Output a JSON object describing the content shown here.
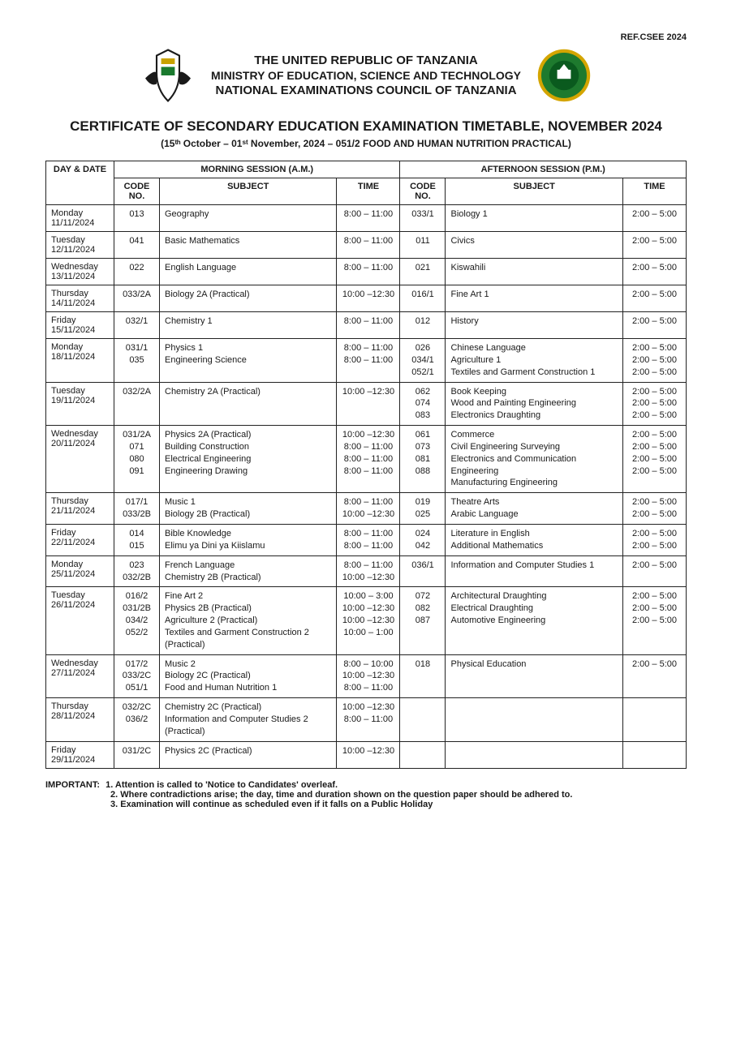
{
  "page": {
    "ref": "REF.CSEE 2024",
    "header": {
      "line1": "THE UNITED REPUBLIC OF TANZANIA",
      "line2": "MINISTRY OF EDUCATION, SCIENCE AND TECHNOLOGY",
      "line3": "NATIONAL EXAMINATIONS COUNCIL OF TANZANIA"
    },
    "crest_colors": {
      "shield": "#ffffff",
      "outline": "#1a1a1a",
      "accent": "#c8a200"
    },
    "seal_colors": {
      "ring": "#1e7a2e",
      "center": "#0a5a1e",
      "gold": "#d4a500"
    },
    "title": "CERTIFICATE OF SECONDARY EDUCATION EXAMINATION TIMETABLE, NOVEMBER 2024",
    "subtitle": "(15ᵗʰ October – 01ˢᵗ November, 2024 – 051/2 FOOD AND HUMAN NUTRITION PRACTICAL)",
    "columns": {
      "daydate": "DAY & DATE",
      "am_session": "MORNING SESSION  (A.M.)",
      "pm_session": "AFTERNOON SESSION  (P.M.)",
      "code": "CODE NO.",
      "subject": "SUBJECT",
      "time": "TIME"
    },
    "important": {
      "lead": "IMPORTANT:",
      "items": [
        "1. Attention is called to 'Notice to Candidates' overleaf.",
        "2. Where contradictions arise; the day, time and duration shown on the question paper should be adhered to.",
        "3. Examination will continue as scheduled even if it falls on a Public Holiday"
      ]
    }
  },
  "rows": [
    {
      "dow": "Monday",
      "date": "11/11/2024",
      "am": {
        "codes": [
          "013"
        ],
        "subjects": [
          "Geography"
        ],
        "times": [
          "8:00 – 11:00"
        ]
      },
      "pm": {
        "codes": [
          "033/1"
        ],
        "subjects": [
          "Biology 1"
        ],
        "times": [
          "2:00 – 5:00"
        ]
      }
    },
    {
      "dow": "Tuesday",
      "date": "12/11/2024",
      "am": {
        "codes": [
          "041"
        ],
        "subjects": [
          "Basic Mathematics"
        ],
        "times": [
          "8:00 – 11:00"
        ]
      },
      "pm": {
        "codes": [
          "011"
        ],
        "subjects": [
          "Civics"
        ],
        "times": [
          "2:00 – 5:00"
        ]
      }
    },
    {
      "dow": "Wednesday",
      "date": "13/11/2024",
      "am": {
        "codes": [
          "022"
        ],
        "subjects": [
          "English Language"
        ],
        "times": [
          "8:00 – 11:00"
        ]
      },
      "pm": {
        "codes": [
          "021"
        ],
        "subjects": [
          "Kiswahili"
        ],
        "times": [
          "2:00 – 5:00"
        ]
      }
    },
    {
      "dow": "Thursday",
      "date": "14/11/2024",
      "am": {
        "codes": [
          "033/2A"
        ],
        "subjects": [
          "Biology 2A (Practical)"
        ],
        "times": [
          "10:00 –12:30"
        ]
      },
      "pm": {
        "codes": [
          "016/1"
        ],
        "subjects": [
          "Fine Art 1"
        ],
        "times": [
          "2:00 – 5:00"
        ]
      }
    },
    {
      "dow": "Friday",
      "date": "15/11/2024",
      "am": {
        "codes": [
          "032/1"
        ],
        "subjects": [
          "Chemistry 1"
        ],
        "times": [
          "8:00 – 11:00"
        ]
      },
      "pm": {
        "codes": [
          "012"
        ],
        "subjects": [
          "History"
        ],
        "times": [
          "2:00 – 5:00"
        ]
      }
    },
    {
      "dow": "Monday",
      "date": "18/11/2024",
      "am": {
        "codes": [
          "031/1",
          "035"
        ],
        "subjects": [
          "Physics 1",
          "Engineering Science"
        ],
        "times": [
          "8:00 – 11:00",
          "8:00 – 11:00"
        ]
      },
      "pm": {
        "codes": [
          "026",
          "034/1",
          "052/1"
        ],
        "subjects": [
          "Chinese Language",
          "Agriculture 1",
          "Textiles and Garment Construction 1"
        ],
        "times": [
          "2:00 – 5:00",
          "2:00 – 5:00",
          "2:00 – 5:00"
        ]
      }
    },
    {
      "dow": "Tuesday",
      "date": "19/11/2024",
      "am": {
        "codes": [
          "032/2A"
        ],
        "subjects": [
          "Chemistry 2A (Practical)"
        ],
        "times": [
          "10:00 –12:30"
        ]
      },
      "pm": {
        "codes": [
          "062",
          "074",
          "083"
        ],
        "subjects": [
          "Book Keeping",
          "Wood and Painting Engineering",
          "Electronics Draughting"
        ],
        "times": [
          "2:00 – 5:00",
          "2:00 – 5:00",
          "2:00 – 5:00"
        ]
      }
    },
    {
      "dow": "Wednesday",
      "date": "20/11/2024",
      "am": {
        "codes": [
          "031/2A",
          "071",
          "080",
          "091"
        ],
        "subjects": [
          "Physics 2A (Practical)",
          "Building Construction",
          "Electrical Engineering",
          "Engineering Drawing"
        ],
        "times": [
          "10:00 –12:30",
          "8:00 – 11:00",
          "8:00 – 11:00",
          "8:00 – 11:00"
        ]
      },
      "pm": {
        "codes": [
          "061",
          "073",
          "081",
          "088"
        ],
        "subjects": [
          "Commerce",
          "Civil Engineering Surveying",
          "Electronics and Communication Engineering",
          "Manufacturing Engineering"
        ],
        "times": [
          "2:00 – 5:00",
          "2:00 – 5:00",
          "2:00 – 5:00",
          "2:00 – 5:00"
        ]
      }
    },
    {
      "dow": "Thursday",
      "date": "21/11/2024",
      "am": {
        "codes": [
          "017/1",
          "033/2B"
        ],
        "subjects": [
          "Music 1",
          "Biology 2B (Practical)"
        ],
        "times": [
          "8:00 – 11:00",
          "10:00 –12:30"
        ]
      },
      "pm": {
        "codes": [
          "019",
          "025"
        ],
        "subjects": [
          "Theatre Arts",
          "Arabic Language"
        ],
        "times": [
          "2:00 – 5:00",
          "2:00 – 5:00"
        ]
      }
    },
    {
      "dow": "Friday",
      "date": "22/11/2024",
      "am": {
        "codes": [
          "014",
          "015"
        ],
        "subjects": [
          "Bible Knowledge",
          "Elimu ya Dini ya Kiislamu"
        ],
        "times": [
          "8:00 – 11:00",
          "8:00 – 11:00"
        ]
      },
      "pm": {
        "codes": [
          "024",
          "042"
        ],
        "subjects": [
          "Literature in English",
          "Additional Mathematics"
        ],
        "times": [
          "2:00 – 5:00",
          "2:00 – 5:00"
        ]
      }
    },
    {
      "dow": "Monday",
      "date": "25/11/2024",
      "am": {
        "codes": [
          "023",
          "032/2B"
        ],
        "subjects": [
          "French Language",
          "Chemistry 2B (Practical)"
        ],
        "times": [
          "8:00 – 11:00",
          "10:00 –12:30"
        ]
      },
      "pm": {
        "codes": [
          "036/1"
        ],
        "subjects": [
          "Information and Computer Studies 1"
        ],
        "times": [
          "2:00 – 5:00"
        ]
      }
    },
    {
      "dow": "Tuesday",
      "date": "26/11/2024",
      "am": {
        "codes": [
          "016/2",
          "031/2B",
          "034/2",
          "052/2"
        ],
        "subjects": [
          "Fine Art 2",
          "Physics 2B (Practical)",
          "Agriculture 2 (Practical)",
          "Textiles and Garment Construction 2 (Practical)"
        ],
        "times": [
          "10:00 – 3:00",
          "10:00 –12:30",
          "10:00 –12:30",
          "10:00 – 1:00"
        ]
      },
      "pm": {
        "codes": [
          "072",
          "082",
          "087"
        ],
        "subjects": [
          "Architectural Draughting",
          "Electrical Draughting",
          "Automotive Engineering"
        ],
        "times": [
          "2:00 – 5:00",
          "2:00 – 5:00",
          "2:00 – 5:00"
        ]
      }
    },
    {
      "dow": "Wednesday",
      "date": "27/11/2024",
      "am": {
        "codes": [
          "017/2",
          "033/2C",
          "051/1"
        ],
        "subjects": [
          "Music 2",
          "Biology 2C (Practical)",
          "Food and Human Nutrition 1"
        ],
        "times": [
          "8:00 – 10:00",
          "10:00 –12:30",
          "8:00 – 11:00"
        ]
      },
      "pm": {
        "codes": [
          "018"
        ],
        "subjects": [
          "Physical Education"
        ],
        "times": [
          "2:00 – 5:00"
        ]
      }
    },
    {
      "dow": "Thursday",
      "date": "28/11/2024",
      "am": {
        "codes": [
          "032/2C",
          "036/2"
        ],
        "subjects": [
          "Chemistry 2C (Practical)",
          "Information and Computer Studies 2 (Practical)"
        ],
        "times": [
          "10:00 –12:30",
          "8:00 – 11:00"
        ]
      },
      "pm": {
        "codes": [],
        "subjects": [],
        "times": []
      }
    },
    {
      "dow": "Friday",
      "date": "29/11/2024",
      "am": {
        "codes": [
          "031/2C"
        ],
        "subjects": [
          "Physics 2C (Practical)"
        ],
        "times": [
          "10:00 –12:30"
        ]
      },
      "pm": {
        "codes": [],
        "subjects": [],
        "times": []
      }
    }
  ]
}
